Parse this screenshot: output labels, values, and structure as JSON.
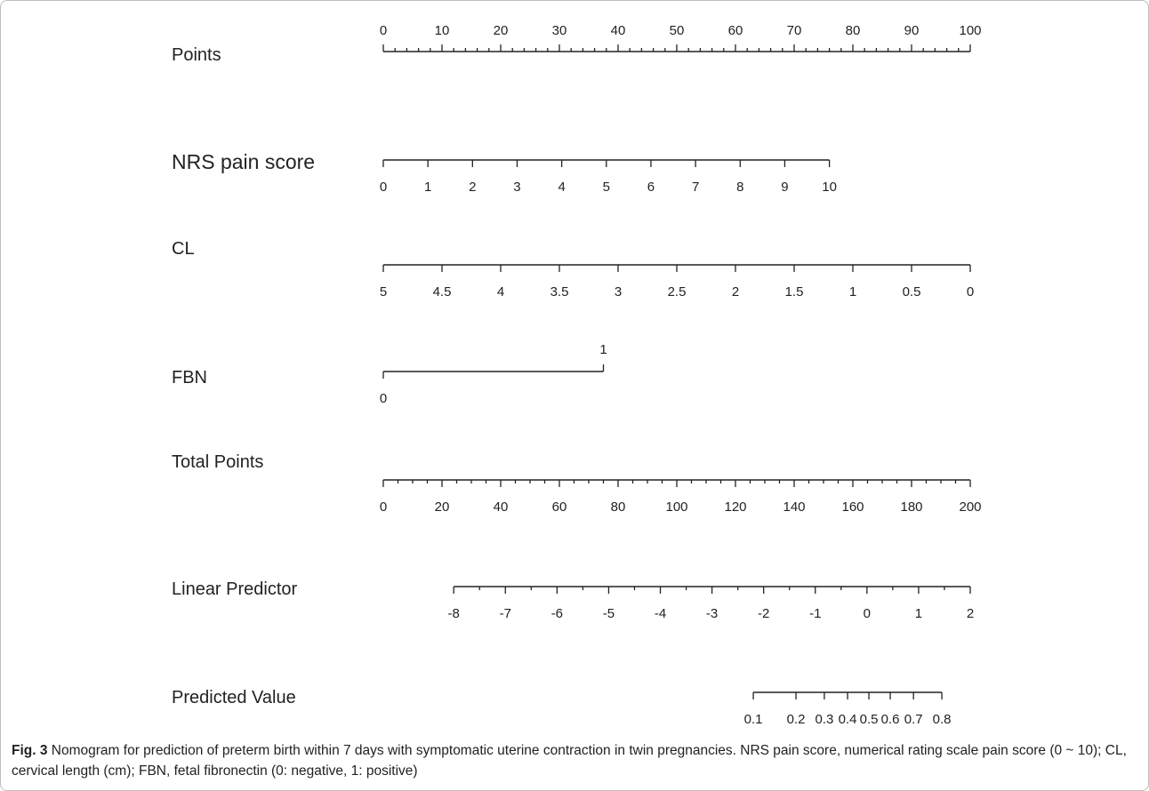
{
  "caption": {
    "label": "Fig. 3",
    "text": "Nomogram for prediction of preterm birth within 7 days with symptomatic uterine contraction in twin pregnancies. NRS pain score, numerical rating scale pain score (0 ~ 10); CL, cervical length (cm); FBN, fetal fibronectin (0: negative, 1: positive)"
  },
  "chart_data": {
    "type": "nomogram",
    "title": "",
    "scales": [
      {
        "name": "Points",
        "min": 0,
        "max": 100,
        "labeled_ticks": [
          0,
          10,
          20,
          30,
          40,
          50,
          60,
          70,
          80,
          90,
          100
        ],
        "minor_step": 2,
        "label_position": "above",
        "points_range": [
          0,
          100
        ]
      },
      {
        "name": "NRS pain score",
        "min": 0,
        "max": 10,
        "labeled_ticks": [
          0,
          1,
          2,
          3,
          4,
          5,
          6,
          7,
          8,
          9,
          10
        ],
        "minor_step": 0,
        "label_position": "below",
        "points_range": [
          0,
          76
        ]
      },
      {
        "name": "CL",
        "values_display": [
          "5",
          "4.5",
          "4",
          "3.5",
          "3",
          "2.5",
          "2",
          "1.5",
          "1",
          "0.5",
          "0"
        ],
        "label_position": "below",
        "points_range": [
          0,
          100
        ],
        "direction": "decreasing"
      },
      {
        "name": "FBN",
        "categories": [
          {
            "value": "0",
            "points": 0,
            "label_position": "below"
          },
          {
            "value": "1",
            "points": 37.5,
            "label_position": "above"
          }
        ]
      },
      {
        "name": "Total Points",
        "min": 0,
        "max": 200,
        "labeled_ticks": [
          0,
          20,
          40,
          60,
          80,
          100,
          120,
          140,
          160,
          180,
          200
        ],
        "minor_step": 5,
        "label_position": "below",
        "points_range": [
          0,
          100
        ]
      },
      {
        "name": "Linear Predictor",
        "min": -8,
        "max": 2,
        "labeled_ticks": [
          -8,
          -7,
          -6,
          -5,
          -4,
          -3,
          -2,
          -1,
          0,
          1,
          2
        ],
        "minor_step": 0.5,
        "label_position": "below",
        "total_points_range": [
          24,
          200
        ]
      },
      {
        "name": "Predicted Value",
        "labeled_ticks": [
          0.1,
          0.2,
          0.3,
          0.4,
          0.5,
          0.6,
          0.7,
          0.8
        ],
        "tick_labels": [
          "0.1",
          "0.2",
          "0.3",
          "0.4",
          "0.5",
          "0.6",
          "0.7",
          "0.8"
        ],
        "label_position": "below",
        "linear_predictor_range": [
          -2.2,
          1.45
        ]
      }
    ]
  }
}
